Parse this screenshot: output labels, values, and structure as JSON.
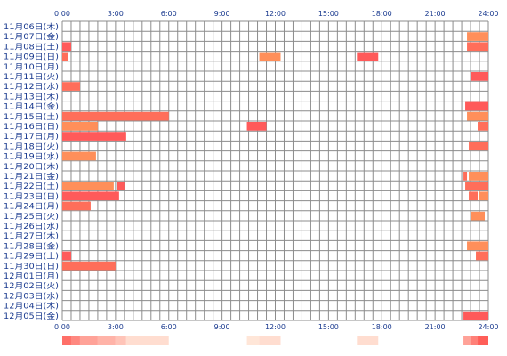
{
  "chart_data": {
    "type": "heatmap",
    "hour_ticks": [
      "0:00",
      "3:00",
      "6:00",
      "9:00",
      "12:00",
      "15:00",
      "18:00",
      "21:00",
      "24:00"
    ],
    "x_range_hours": [
      0,
      24
    ],
    "grid": true,
    "rows": [
      {
        "date": "11月06日(木)",
        "bars": []
      },
      {
        "date": "11月07日(金)",
        "bars": [
          [
            22.8,
            24
          ]
        ]
      },
      {
        "date": "11月08日(土)",
        "bars": [
          [
            0,
            0.5
          ],
          [
            22.8,
            24
          ]
        ]
      },
      {
        "date": "11月09日(日)",
        "bars": [
          [
            0,
            0.3
          ],
          [
            11.1,
            12.3
          ],
          [
            16.6,
            17.8
          ]
        ]
      },
      {
        "date": "11月10日(月)",
        "bars": []
      },
      {
        "date": "11月11日(火)",
        "bars": [
          [
            23,
            24
          ]
        ]
      },
      {
        "date": "11月12日(水)",
        "bars": [
          [
            0,
            1
          ]
        ]
      },
      {
        "date": "11月13日(木)",
        "bars": []
      },
      {
        "date": "11月14日(金)",
        "bars": [
          [
            22.7,
            24
          ]
        ]
      },
      {
        "date": "11月15日(土)",
        "bars": [
          [
            0,
            6
          ],
          [
            22.8,
            24
          ]
        ]
      },
      {
        "date": "11月16日(日)",
        "bars": [
          [
            0,
            2
          ],
          [
            10.4,
            11.5
          ],
          [
            23.4,
            24
          ]
        ]
      },
      {
        "date": "11月17日(月)",
        "bars": [
          [
            0,
            3.6
          ]
        ]
      },
      {
        "date": "11月18日(火)",
        "bars": [
          [
            22.9,
            24
          ]
        ]
      },
      {
        "date": "11月19日(水)",
        "bars": [
          [
            0,
            1.9
          ]
        ]
      },
      {
        "date": "11月20日(木)",
        "bars": []
      },
      {
        "date": "11月21日(金)",
        "bars": [
          [
            22.6,
            22.8
          ],
          [
            22.9,
            24
          ]
        ]
      },
      {
        "date": "11月22日(土)",
        "bars": [
          [
            0,
            2.9
          ],
          [
            3.1,
            3.5
          ],
          [
            22.7,
            24
          ]
        ]
      },
      {
        "date": "11月23日(日)",
        "bars": [
          [
            0,
            3.2
          ],
          [
            22.9,
            23.4
          ],
          [
            23.5,
            24
          ]
        ]
      },
      {
        "date": "11月24日(月)",
        "bars": [
          [
            0,
            1.6
          ]
        ]
      },
      {
        "date": "11月25日(火)",
        "bars": [
          [
            23,
            23.8
          ]
        ]
      },
      {
        "date": "11月26日(水)",
        "bars": []
      },
      {
        "date": "11月27日(木)",
        "bars": []
      },
      {
        "date": "11月28日(金)",
        "bars": [
          [
            22.8,
            24
          ]
        ]
      },
      {
        "date": "11月29日(土)",
        "bars": [
          [
            0,
            0.5
          ],
          [
            23.3,
            24
          ]
        ]
      },
      {
        "date": "11月30日(日)",
        "bars": [
          [
            0,
            3
          ]
        ]
      },
      {
        "date": "12月01日(月)",
        "bars": []
      },
      {
        "date": "12月02日(火)",
        "bars": []
      },
      {
        "date": "12月03日(水)",
        "bars": []
      },
      {
        "date": "12月04日(木)",
        "bars": []
      },
      {
        "date": "12月05日(金)",
        "bars": [
          [
            22.6,
            24
          ]
        ]
      }
    ],
    "bar_colors": [
      "#ff6e5a",
      "#ff8f5a",
      "#ff5a5a"
    ],
    "density_strip": [
      {
        "range": [
          0,
          0.5
        ],
        "level": 0.85
      },
      {
        "range": [
          0.5,
          1
        ],
        "level": 0.7
      },
      {
        "range": [
          1,
          2
        ],
        "level": 0.55
      },
      {
        "range": [
          2,
          3
        ],
        "level": 0.45
      },
      {
        "range": [
          3,
          3.6
        ],
        "level": 0.35
      },
      {
        "range": [
          3.6,
          6
        ],
        "level": 0.2
      },
      {
        "range": [
          10.4,
          11.1
        ],
        "level": 0.15
      },
      {
        "range": [
          11.1,
          12.3
        ],
        "level": 0.2
      },
      {
        "range": [
          16.6,
          17.8
        ],
        "level": 0.2
      },
      {
        "range": [
          22.6,
          23
        ],
        "level": 0.55
      },
      {
        "range": [
          23,
          23.4
        ],
        "level": 0.75
      },
      {
        "range": [
          23.4,
          24
        ],
        "level": 0.95
      }
    ]
  }
}
